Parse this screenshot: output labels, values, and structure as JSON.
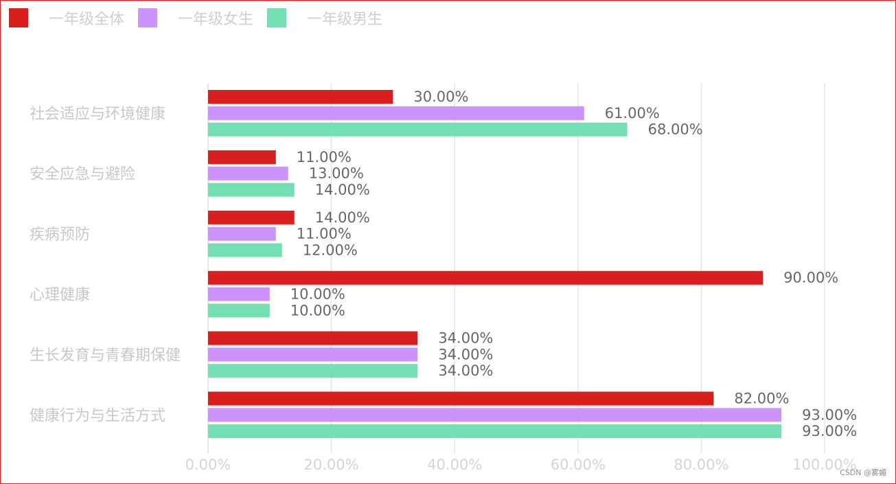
{
  "colors": {
    "frame_border": "#e02020",
    "grid": "#e3e3ee",
    "axis": "#cccccc"
  },
  "chart_data": {
    "type": "bar",
    "orientation": "horizontal",
    "categories": [
      "社会适应与环境健康",
      "安全应急与避险",
      "疾病预防",
      "心理健康",
      "生长发育与青春期保健",
      "健康行为与生活方式"
    ],
    "series": [
      {
        "name": "一年级全体",
        "color": "#d91e1e",
        "values": [
          30,
          11,
          14,
          90,
          34,
          82
        ],
        "labels": [
          "30.00%",
          "11.00%",
          "14.00%",
          "90.00%",
          "34.00%",
          "82.00%"
        ]
      },
      {
        "name": "一年级女生",
        "color": "#cb93fb",
        "values": [
          61,
          13,
          11,
          10,
          34,
          93
        ],
        "labels": [
          "61.00%",
          "13.00%",
          "11.00%",
          "10.00%",
          "34.00%",
          "93.00%"
        ]
      },
      {
        "name": "一年级男生",
        "color": "#74dfb3",
        "values": [
          68,
          14,
          12,
          10,
          34,
          93
        ],
        "labels": [
          "68.00%",
          "14.00%",
          "12.00%",
          "10.00%",
          "34.00%",
          "93.00%"
        ]
      }
    ],
    "xlim": [
      0,
      100
    ],
    "xticks": [
      0,
      20,
      40,
      60,
      80,
      100
    ],
    "xtick_labels": [
      "0.00%",
      "20.00%",
      "40.00%",
      "60.00%",
      "80.00%",
      "100.00%"
    ],
    "grid": true,
    "legend_position": "top-left"
  },
  "watermark": "CSDN @雾媚"
}
